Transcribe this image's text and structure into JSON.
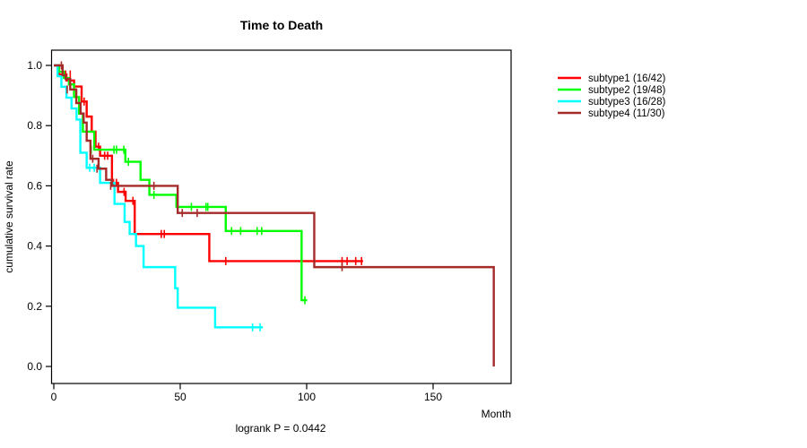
{
  "title": "Time to Death",
  "footer": "logrank P = 0.0442",
  "x_axis": {
    "label": "Month",
    "ticks": [
      {
        "label": "0",
        "value": 0
      },
      {
        "label": "50",
        "value": 50
      },
      {
        "label": "100",
        "value": 100
      },
      {
        "label": "150",
        "value": 150
      }
    ]
  },
  "y_axis": {
    "label": "cumulative survival rate",
    "ticks": [
      {
        "label": "0.0",
        "value": 0.0
      },
      {
        "label": "0.2",
        "value": 0.2
      },
      {
        "label": "0.4",
        "value": 0.4
      },
      {
        "label": "0.6",
        "value": 0.6
      },
      {
        "label": "0.8",
        "value": 0.8
      },
      {
        "label": "1.0",
        "value": 1.0
      }
    ]
  },
  "chart_data": {
    "type": "line",
    "variant": "kaplan-meier-step",
    "title": "Time to Death",
    "xlabel": "Month",
    "ylabel": "cumulative survival rate",
    "annotation": "logrank P = 0.0442",
    "xlim": [
      0,
      181
    ],
    "ylim": [
      0.0,
      1.0
    ],
    "legend_position": "right",
    "series": [
      {
        "name": "subtype1 (16/42)",
        "events": "16/42",
        "color": "#ff0000",
        "steps": [
          [
            0,
            1.0
          ],
          [
            2,
            0.97
          ],
          [
            5,
            0.95
          ],
          [
            8,
            0.93
          ],
          [
            11,
            0.88
          ],
          [
            13,
            0.83
          ],
          [
            15,
            0.78
          ],
          [
            16.5,
            0.73
          ],
          [
            18.3,
            0.7
          ],
          [
            23,
            0.61
          ],
          [
            25.4,
            0.58
          ],
          [
            28.4,
            0.55
          ],
          [
            32,
            0.44
          ],
          [
            61.5,
            0.35
          ]
        ],
        "end": 122.3,
        "censor_ticks": [
          [
            4.7,
            0.97
          ],
          [
            6.5,
            0.97
          ],
          [
            12,
            0.88
          ],
          [
            17.7,
            0.73
          ],
          [
            20.1,
            0.7
          ],
          [
            21.3,
            0.7
          ],
          [
            23.6,
            0.61
          ],
          [
            24.8,
            0.61
          ],
          [
            27.8,
            0.58
          ],
          [
            31.3,
            0.55
          ],
          [
            42.5,
            0.44
          ],
          [
            43.7,
            0.44
          ],
          [
            68,
            0.35
          ],
          [
            114,
            0.35
          ],
          [
            116,
            0.35
          ],
          [
            119.4,
            0.35
          ],
          [
            121.7,
            0.35
          ]
        ]
      },
      {
        "name": "subtype2 (19/48)",
        "events": "19/48",
        "color": "#00ff00",
        "steps": [
          [
            0,
            1.0
          ],
          [
            2,
            0.979
          ],
          [
            4,
            0.958
          ],
          [
            6,
            0.937
          ],
          [
            8,
            0.895
          ],
          [
            10,
            0.84
          ],
          [
            11.5,
            0.78
          ],
          [
            16,
            0.72
          ],
          [
            28.3,
            0.68
          ],
          [
            34.3,
            0.62
          ],
          [
            37.8,
            0.57
          ],
          [
            48.5,
            0.53
          ],
          [
            68,
            0.45
          ],
          [
            98,
            0.22
          ]
        ],
        "end": 100.2,
        "censor_ticks": [
          [
            14.8,
            0.72
          ],
          [
            23.8,
            0.72
          ],
          [
            24.8,
            0.72
          ],
          [
            27.7,
            0.72
          ],
          [
            29.5,
            0.68
          ],
          [
            39.6,
            0.57
          ],
          [
            54.4,
            0.53
          ],
          [
            60.2,
            0.53
          ],
          [
            60.9,
            0.53
          ],
          [
            70.3,
            0.45
          ],
          [
            73.9,
            0.45
          ],
          [
            80.4,
            0.45
          ],
          [
            82.2,
            0.45
          ],
          [
            99.3,
            0.22
          ]
        ]
      },
      {
        "name": "subtype3 (16/28)",
        "events": "16/28",
        "color": "#00ffff",
        "steps": [
          [
            0,
            1.0
          ],
          [
            1.5,
            0.964
          ],
          [
            3,
            0.929
          ],
          [
            5,
            0.893
          ],
          [
            7,
            0.857
          ],
          [
            9,
            0.82
          ],
          [
            10.5,
            0.71
          ],
          [
            13,
            0.66
          ],
          [
            18.3,
            0.61
          ],
          [
            24,
            0.54
          ],
          [
            28,
            0.48
          ],
          [
            30,
            0.44
          ],
          [
            32.5,
            0.4
          ],
          [
            35.5,
            0.33
          ],
          [
            48,
            0.26
          ],
          [
            49,
            0.195
          ],
          [
            63.8,
            0.13
          ]
        ],
        "end": 82.7,
        "censor_ticks": [
          [
            14.2,
            0.66
          ],
          [
            16,
            0.66
          ],
          [
            78.6,
            0.13
          ],
          [
            81.6,
            0.13
          ]
        ]
      },
      {
        "name": "subtype4 (11/30)",
        "events": "11/30",
        "color": "#a52a2a",
        "steps": [
          [
            0,
            1.0
          ],
          [
            3.5,
            0.967
          ],
          [
            4.7,
            0.955
          ],
          [
            6.5,
            0.92
          ],
          [
            8.9,
            0.875
          ],
          [
            10.6,
            0.84
          ],
          [
            11.8,
            0.81
          ],
          [
            13,
            0.75
          ],
          [
            14.5,
            0.69
          ],
          [
            17.7,
            0.657
          ],
          [
            20.7,
            0.62
          ],
          [
            23,
            0.6
          ],
          [
            49,
            0.51
          ],
          [
            103,
            0.33
          ],
          [
            174,
            0.0
          ]
        ],
        "end": 174,
        "censor_ticks": [
          [
            3,
            1.0
          ],
          [
            5.3,
            0.92
          ],
          [
            15.4,
            0.69
          ],
          [
            17.1,
            0.657
          ],
          [
            22.5,
            0.6
          ],
          [
            39.6,
            0.6
          ],
          [
            50.8,
            0.51
          ],
          [
            56.7,
            0.51
          ],
          [
            114,
            0.33
          ]
        ]
      }
    ]
  }
}
